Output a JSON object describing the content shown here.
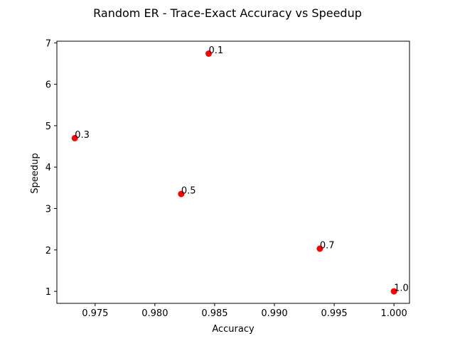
{
  "chart_data": {
    "type": "scatter",
    "title": "Random ER - Trace-Exact Accuracy vs Speedup",
    "xlabel": "Accuracy",
    "ylabel": "Speedup",
    "xlim": [
      0.9718,
      1.0013
    ],
    "ylim": [
      0.71,
      7.04
    ],
    "xticks": [
      0.975,
      0.98,
      0.985,
      0.99,
      0.995,
      1.0
    ],
    "xtick_labels": [
      "0.975",
      "0.980",
      "0.985",
      "0.990",
      "0.995",
      "1.000"
    ],
    "yticks": [
      1,
      2,
      3,
      4,
      5,
      6,
      7
    ],
    "ytick_labels": [
      "1",
      "2",
      "3",
      "4",
      "5",
      "6",
      "7"
    ],
    "grid": false,
    "marker_color": "#ff0000",
    "points": [
      {
        "x": 0.9845,
        "y": 6.74,
        "label": "0.1"
      },
      {
        "x": 0.9733,
        "y": 4.7,
        "label": "0.3"
      },
      {
        "x": 0.9822,
        "y": 3.35,
        "label": "0.5"
      },
      {
        "x": 0.9938,
        "y": 2.03,
        "label": "0.7"
      },
      {
        "x": 1.0,
        "y": 1.0,
        "label": "1.0"
      }
    ]
  }
}
